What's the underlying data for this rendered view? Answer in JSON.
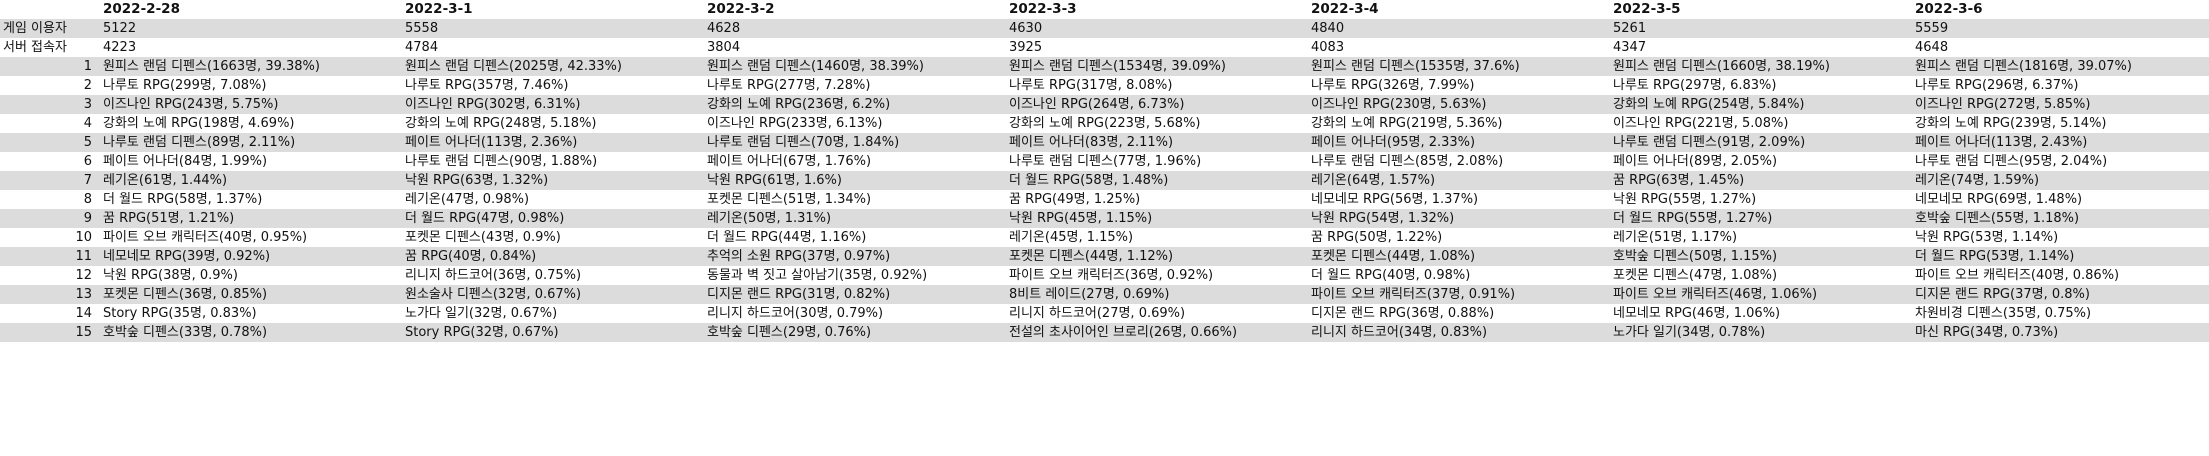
{
  "dates": [
    "2022-2-28",
    "2022-3-1",
    "2022-3-2",
    "2022-3-3",
    "2022-3-4",
    "2022-3-5",
    "2022-3-6"
  ],
  "metrics": [
    {
      "label": "게임 이용자",
      "values": [
        "5122",
        "5558",
        "4628",
        "4630",
        "4840",
        "5261",
        "5559"
      ]
    },
    {
      "label": "서버 접속자",
      "values": [
        "4223",
        "4784",
        "3804",
        "3925",
        "4083",
        "4347",
        "4648"
      ]
    }
  ],
  "rankings": [
    {
      "rank": "1",
      "cells": [
        "원피스 랜덤 디펜스(1663명, 39.38%)",
        "원피스 랜덤 디펜스(2025명, 42.33%)",
        "원피스 랜덤 디펜스(1460명, 38.39%)",
        "원피스 랜덤 디펜스(1534명, 39.09%)",
        "원피스 랜덤 디펜스(1535명, 37.6%)",
        "원피스 랜덤 디펜스(1660명, 38.19%)",
        "원피스 랜덤 디펜스(1816명, 39.07%)"
      ]
    },
    {
      "rank": "2",
      "cells": [
        "나루토 RPG(299명, 7.08%)",
        "나루토 RPG(357명, 7.46%)",
        "나루토 RPG(277명, 7.28%)",
        "나루토 RPG(317명, 8.08%)",
        "나루토 RPG(326명, 7.99%)",
        "나루토 RPG(297명, 6.83%)",
        "나루토 RPG(296명, 6.37%)"
      ]
    },
    {
      "rank": "3",
      "cells": [
        "이즈나인 RPG(243명, 5.75%)",
        "이즈나인 RPG(302명, 6.31%)",
        "강화의 노예 RPG(236명, 6.2%)",
        "이즈나인 RPG(264명, 6.73%)",
        "이즈나인 RPG(230명, 5.63%)",
        "강화의 노예 RPG(254명, 5.84%)",
        "이즈나인 RPG(272명, 5.85%)"
      ]
    },
    {
      "rank": "4",
      "cells": [
        "강화의 노예 RPG(198명, 4.69%)",
        "강화의 노예 RPG(248명, 5.18%)",
        "이즈나인 RPG(233명, 6.13%)",
        "강화의 노예 RPG(223명, 5.68%)",
        "강화의 노예 RPG(219명, 5.36%)",
        "이즈나인 RPG(221명, 5.08%)",
        "강화의 노예 RPG(239명, 5.14%)"
      ]
    },
    {
      "rank": "5",
      "cells": [
        "나루토 랜덤 디펜스(89명, 2.11%)",
        "페이트 어나더(113명, 2.36%)",
        "나루토 랜덤 디펜스(70명, 1.84%)",
        "페이트 어나더(83명, 2.11%)",
        "페이트 어나더(95명, 2.33%)",
        "나루토 랜덤 디펜스(91명, 2.09%)",
        "페이트 어나더(113명, 2.43%)"
      ]
    },
    {
      "rank": "6",
      "cells": [
        "페이트 어나더(84명, 1.99%)",
        "나루토 랜덤 디펜스(90명, 1.88%)",
        "페이트 어나더(67명, 1.76%)",
        "나루토 랜덤 디펜스(77명, 1.96%)",
        "나루토 랜덤 디펜스(85명, 2.08%)",
        "페이트 어나더(89명, 2.05%)",
        "나루토 랜덤 디펜스(95명, 2.04%)"
      ]
    },
    {
      "rank": "7",
      "cells": [
        "레기온(61명, 1.44%)",
        "낙원 RPG(63명, 1.32%)",
        "낙원 RPG(61명, 1.6%)",
        "더 월드 RPG(58명, 1.48%)",
        "레기온(64명, 1.57%)",
        "꿈 RPG(63명, 1.45%)",
        "레기온(74명, 1.59%)"
      ]
    },
    {
      "rank": "8",
      "cells": [
        "더 월드 RPG(58명, 1.37%)",
        "레기온(47명, 0.98%)",
        "포켓몬 디펜스(51명, 1.34%)",
        "꿈 RPG(49명, 1.25%)",
        "네모네모 RPG(56명, 1.37%)",
        "낙원 RPG(55명, 1.27%)",
        "네모네모 RPG(69명, 1.48%)"
      ]
    },
    {
      "rank": "9",
      "cells": [
        "꿈 RPG(51명, 1.21%)",
        "더 월드 RPG(47명, 0.98%)",
        "레기온(50명, 1.31%)",
        "낙원 RPG(45명, 1.15%)",
        "낙원 RPG(54명, 1.32%)",
        "더 월드 RPG(55명, 1.27%)",
        "호박숲 디펜스(55명, 1.18%)"
      ]
    },
    {
      "rank": "10",
      "cells": [
        "파이트 오브 캐릭터즈(40명, 0.95%)",
        "포켓몬 디펜스(43명, 0.9%)",
        "더 월드 RPG(44명, 1.16%)",
        "레기온(45명, 1.15%)",
        "꿈 RPG(50명, 1.22%)",
        "레기온(51명, 1.17%)",
        "낙원 RPG(53명, 1.14%)"
      ]
    },
    {
      "rank": "11",
      "cells": [
        "네모네모 RPG(39명, 0.92%)",
        "꿈 RPG(40명, 0.84%)",
        "추억의 소원 RPG(37명, 0.97%)",
        "포켓몬 디펜스(44명, 1.12%)",
        "포켓몬 디펜스(44명, 1.08%)",
        "호박숲 디펜스(50명, 1.15%)",
        "더 월드 RPG(53명, 1.14%)"
      ]
    },
    {
      "rank": "12",
      "cells": [
        "낙원 RPG(38명, 0.9%)",
        "리니지 하드코어(36명, 0.75%)",
        "동물과 벽 짓고 살아남기(35명, 0.92%)",
        "파이트 오브 캐릭터즈(36명, 0.92%)",
        "더 월드 RPG(40명, 0.98%)",
        "포켓몬 디펜스(47명, 1.08%)",
        "파이트 오브 캐릭터즈(40명, 0.86%)"
      ]
    },
    {
      "rank": "13",
      "cells": [
        "포켓몬 디펜스(36명, 0.85%)",
        "원소술사 디펜스(32명, 0.67%)",
        "디지몬 랜드 RPG(31명, 0.82%)",
        "8비트 레이드(27명, 0.69%)",
        "파이트 오브 캐릭터즈(37명, 0.91%)",
        "파이트 오브 캐릭터즈(46명, 1.06%)",
        "디지몬 랜드 RPG(37명, 0.8%)"
      ]
    },
    {
      "rank": "14",
      "cells": [
        "Story RPG(35명, 0.83%)",
        "노가다 일기(32명, 0.67%)",
        "리니지 하드코어(30명, 0.79%)",
        "리니지 하드코어(27명, 0.69%)",
        "디지몬 랜드 RPG(36명, 0.88%)",
        "네모네모 RPG(46명, 1.06%)",
        "차원비경 디펜스(35명, 0.75%)"
      ]
    },
    {
      "rank": "15",
      "cells": [
        "호박숲 디펜스(33명, 0.78%)",
        "Story RPG(32명, 0.67%)",
        "호박숲 디펜스(29명, 0.76%)",
        "전설의 초사이어인 브로리(26명, 0.66%)",
        "리니지 하드코어(34명, 0.83%)",
        "노가다 일기(34명, 0.78%)",
        "마신 RPG(34명, 0.73%)"
      ]
    }
  ]
}
